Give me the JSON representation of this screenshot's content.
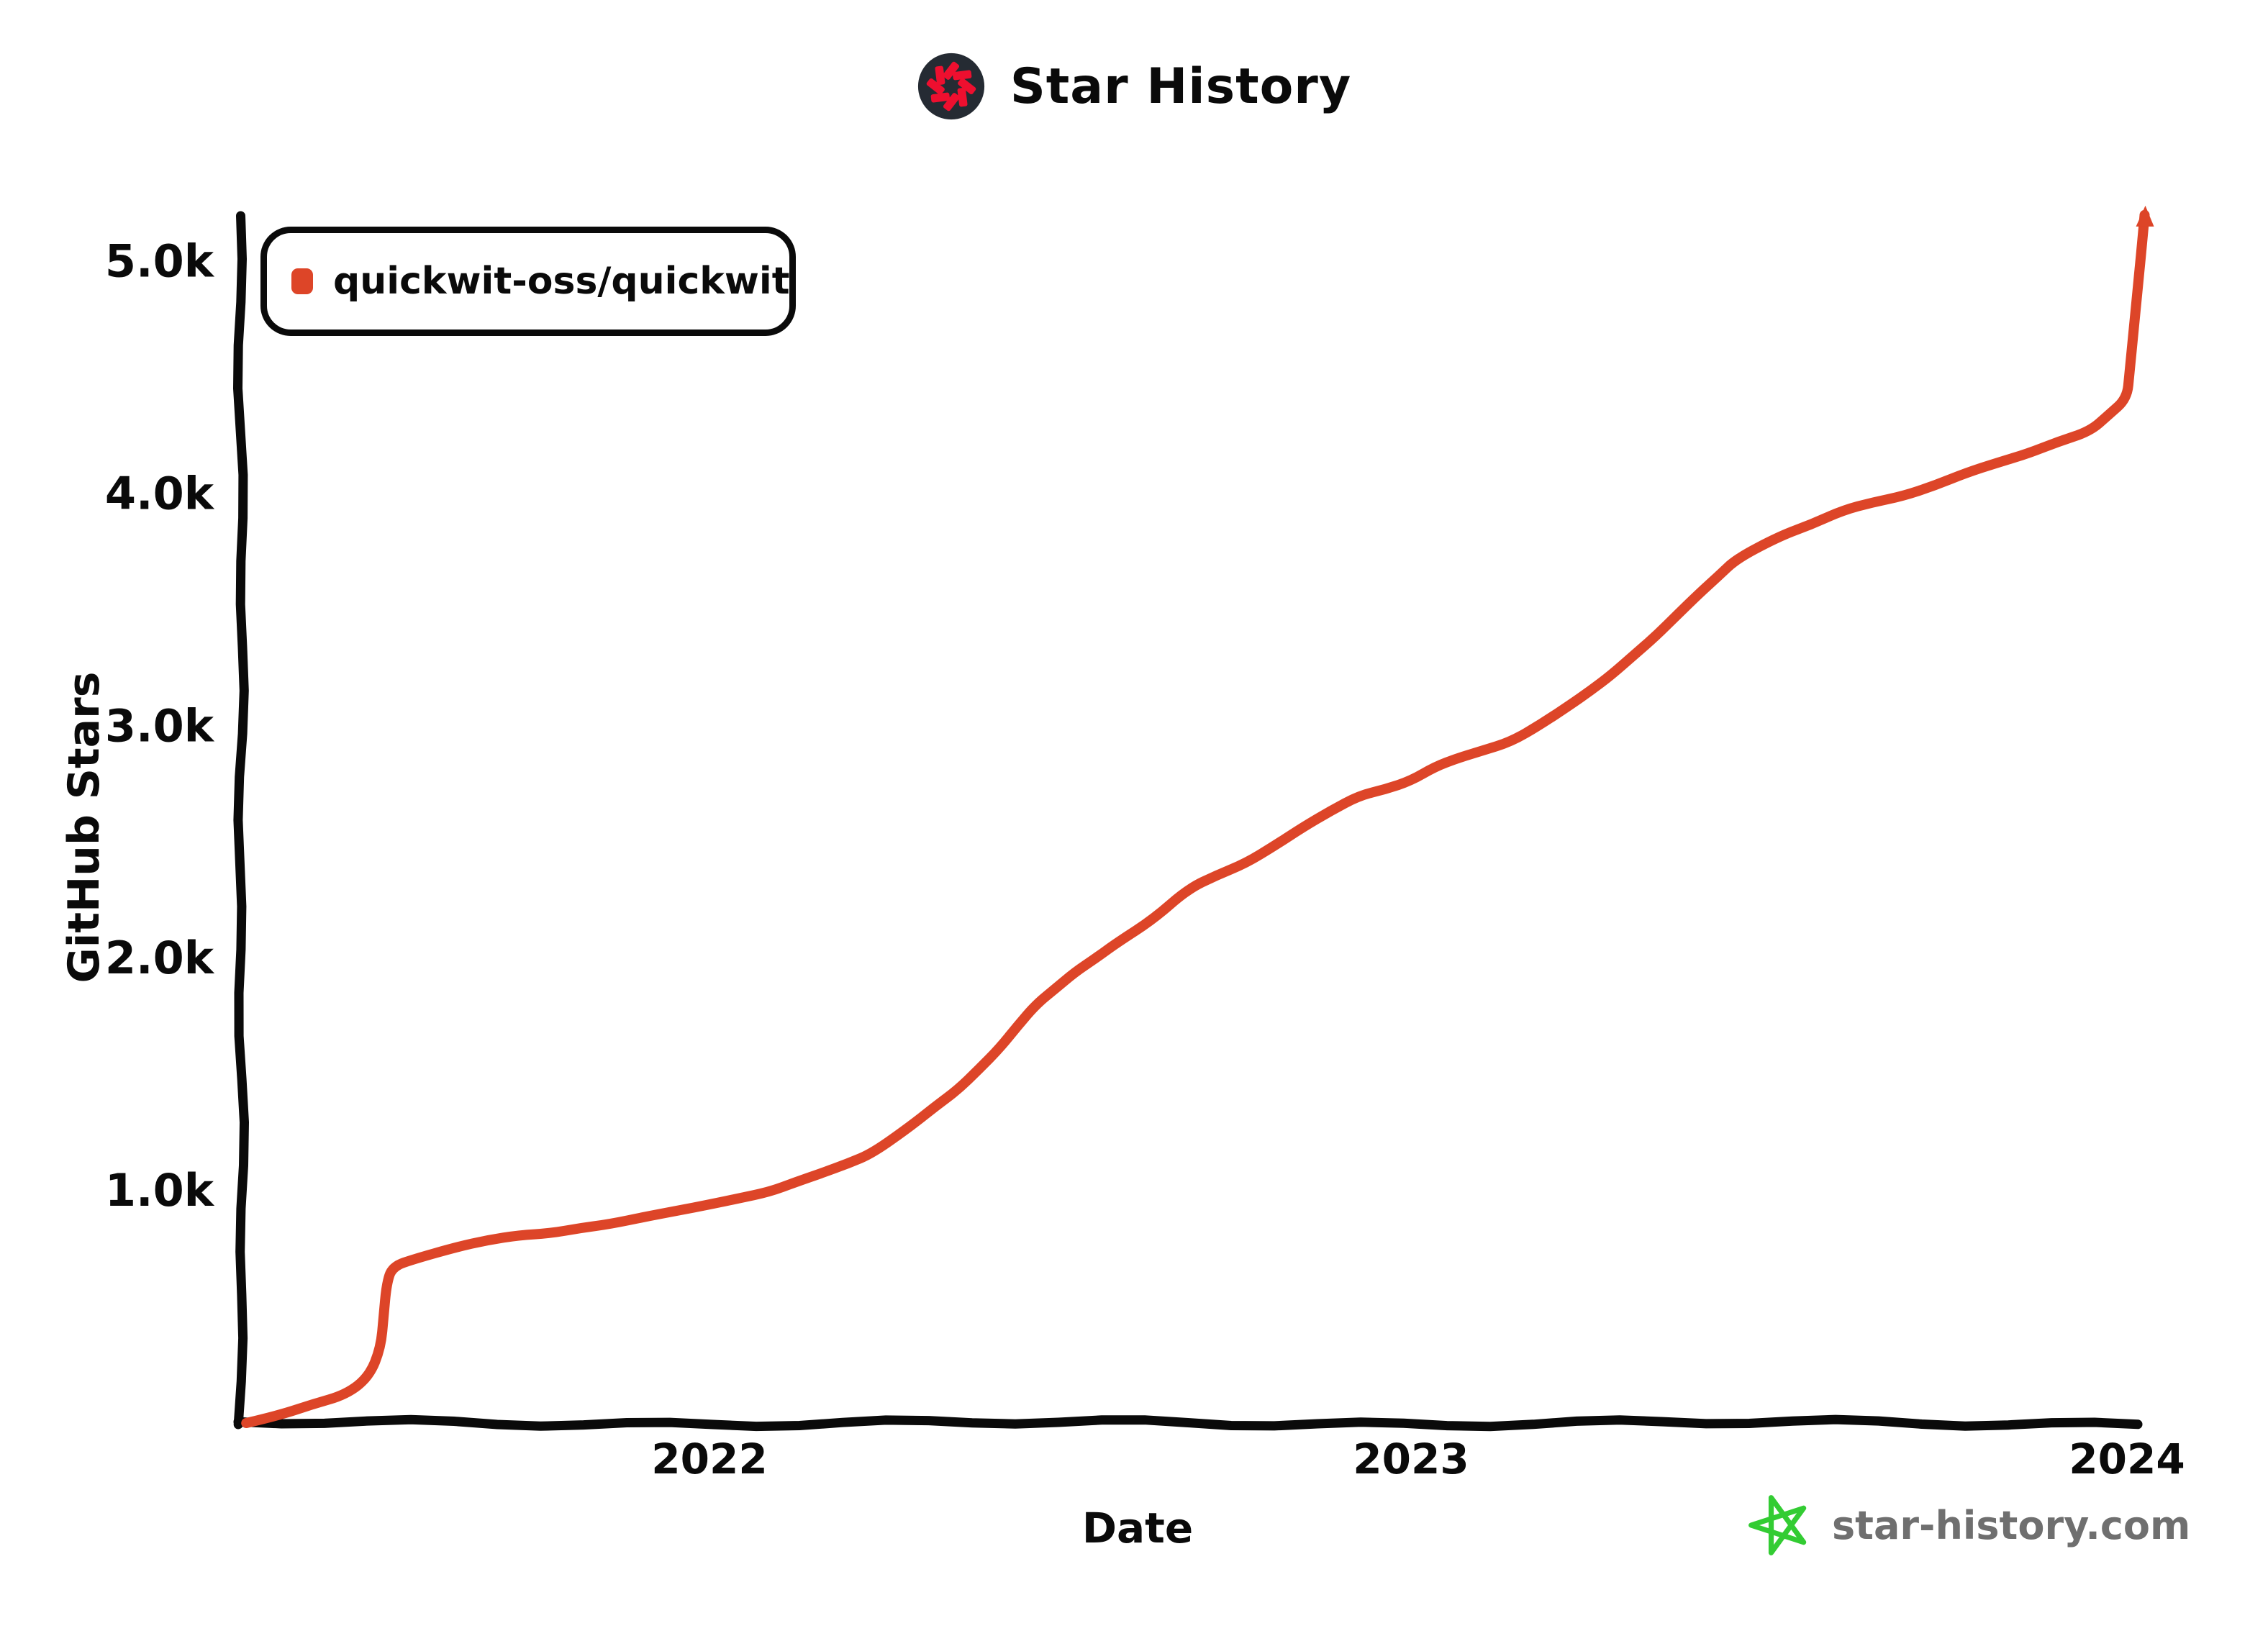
{
  "header": {
    "title": "Star History",
    "logo_icon": "star-history-logo"
  },
  "legend": {
    "label": "quickwit-oss/quickwit",
    "marker_icon": "series-swatch"
  },
  "axes": {
    "y_label": "GitHub Stars",
    "x_label": "Date"
  },
  "footer": {
    "icon": "green-star",
    "text": "star-history.com"
  },
  "colors": {
    "line": "#dd4528",
    "logo_bg": "#252b33",
    "logo_star": "#ee0f2f",
    "green": "#33cc33",
    "gray": "#6f6f6f",
    "ink": "#0a0a0a"
  },
  "chart_data": {
    "type": "line",
    "title": "Star History",
    "xlabel": "Date",
    "ylabel": "GitHub Stars",
    "grid": false,
    "legend_position": "top-left",
    "ylim": [
      0,
      5300
    ],
    "xlim": [
      "2021-05-01",
      "2024-01-20"
    ],
    "y_ticks": [
      {
        "label": "1.0k",
        "value": 1000
      },
      {
        "label": "2.0k",
        "value": 2000
      },
      {
        "label": "3.0k",
        "value": 3000
      },
      {
        "label": "4.0k",
        "value": 4000
      },
      {
        "label": "5.0k",
        "value": 5000
      }
    ],
    "x_ticks": [
      {
        "label": "2022",
        "date": "2022-01-01"
      },
      {
        "label": "2023",
        "date": "2023-01-01"
      },
      {
        "label": "2024",
        "date": "2024-01-01"
      }
    ],
    "series": [
      {
        "name": "quickwit-oss/quickwit",
        "color": "#dd4528",
        "points": [
          [
            "2021-05-05",
            0
          ],
          [
            "2021-05-22",
            35
          ],
          [
            "2021-06-08",
            85
          ],
          [
            "2021-06-26",
            130
          ],
          [
            "2021-07-08",
            200
          ],
          [
            "2021-07-14",
            320
          ],
          [
            "2021-07-17",
            590
          ],
          [
            "2021-07-20",
            665
          ],
          [
            "2021-08-01",
            700
          ],
          [
            "2021-08-22",
            755
          ],
          [
            "2021-09-24",
            810
          ],
          [
            "2021-10-26",
            845
          ],
          [
            "2021-11-10",
            855
          ],
          [
            "2021-11-29",
            890
          ],
          [
            "2022-01-01",
            930
          ],
          [
            "2022-02-01",
            1000
          ],
          [
            "2022-03-01",
            1080
          ],
          [
            "2022-03-27",
            1170
          ],
          [
            "2022-04-17",
            1280
          ],
          [
            "2022-05-10",
            1430
          ],
          [
            "2022-06-01",
            1610
          ],
          [
            "2022-06-20",
            1800
          ],
          [
            "2022-07-10",
            1950
          ],
          [
            "2022-08-01",
            2070
          ],
          [
            "2022-08-20",
            2170
          ],
          [
            "2022-09-07",
            2300
          ],
          [
            "2022-10-07",
            2400
          ],
          [
            "2022-11-06",
            2570
          ],
          [
            "2022-12-05",
            2705
          ],
          [
            "2023-01-01",
            2770
          ],
          [
            "2023-01-13",
            2820
          ],
          [
            "2023-02-06",
            2890
          ],
          [
            "2023-02-21",
            2930
          ],
          [
            "2023-03-08",
            3000
          ],
          [
            "2023-03-23",
            3090
          ],
          [
            "2023-04-13",
            3230
          ],
          [
            "2023-05-06",
            3390
          ],
          [
            "2023-05-28",
            3575
          ],
          [
            "2023-06-16",
            3715
          ],
          [
            "2023-07-08",
            3810
          ],
          [
            "2023-08-09",
            3930
          ],
          [
            "2023-09-09",
            4000
          ],
          [
            "2023-10-11",
            4085
          ],
          [
            "2023-11-11",
            4170
          ],
          [
            "2023-12-13",
            4265
          ],
          [
            "2024-01-01",
            4420
          ],
          [
            "2024-01-10",
            5200
          ]
        ]
      }
    ]
  }
}
